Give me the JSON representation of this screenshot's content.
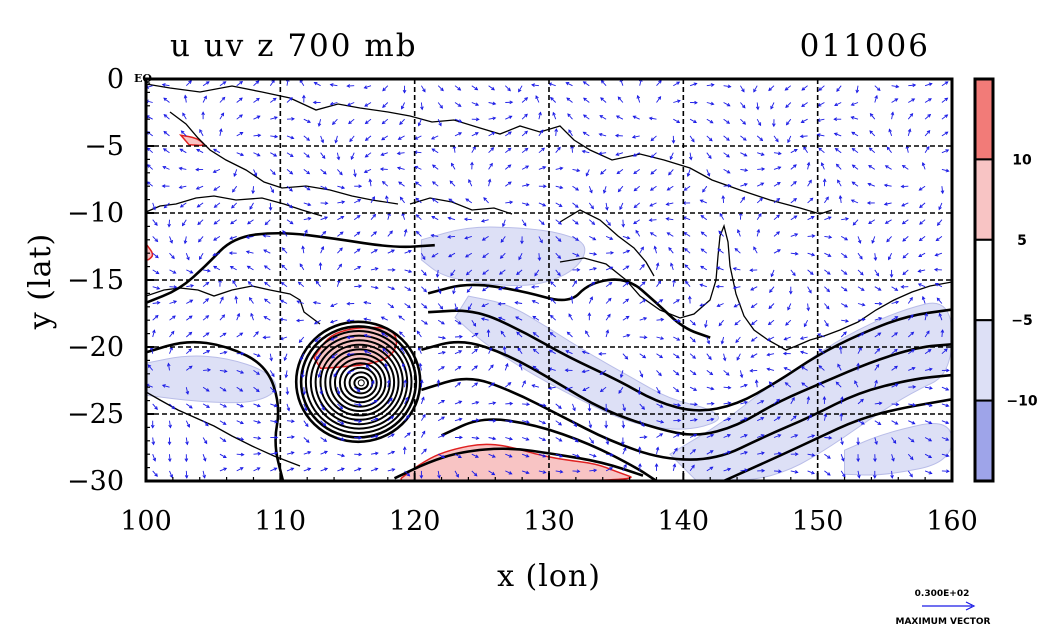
{
  "chart_data": {
    "type": "contour",
    "title_left": "u uv z 700 mb",
    "title_right": "011006",
    "xlabel": "x (lon)",
    "ylabel": "y (lat)",
    "xlim": [
      100,
      160
    ],
    "ylim": [
      -30,
      0
    ],
    "x_ticks": [
      100,
      110,
      120,
      130,
      140,
      150,
      160
    ],
    "y_ticks": [
      0,
      -5,
      -10,
      -15,
      -20,
      -25,
      -30
    ],
    "x_tick_labels": [
      "100",
      "110",
      "120",
      "130",
      "140",
      "150",
      "160"
    ],
    "y_tick_labels": [
      "0",
      "−5",
      "−10",
      "−15",
      "−20",
      "−25",
      "−30"
    ],
    "corner_label": "EQ",
    "grid": true,
    "colorbar": {
      "levels": [
        -15,
        -10,
        -5,
        5,
        10,
        15
      ],
      "labels": [
        "10",
        "5",
        "−5",
        "−10"
      ],
      "label_values": [
        10,
        5,
        -5,
        -10
      ],
      "colors": [
        "#f27b78",
        "#f8c4c4",
        "#ffffff",
        "#dde0f6",
        "#9ea4e9"
      ]
    },
    "vector_key": {
      "value": "0.300E+02",
      "label": "MAXIMUM VECTOR"
    },
    "colors": {
      "positive_strong": "#f27b78",
      "positive_weak": "#f8c4c4",
      "negative_weak": "#dde0f6",
      "negative_strong": "#9ea4e9",
      "vectors": "#1a1ae6",
      "contours": "#000000",
      "positive_outline": "#e02020"
    },
    "cyclone_center": {
      "lon": 115.8,
      "lat": -22.6
    },
    "positive_regions": [
      {
        "name": "cyclone-north",
        "points": [
          [
            112.5,
            -20.8
          ],
          [
            113.5,
            -19.3
          ],
          [
            114.8,
            -18.7
          ],
          [
            116.5,
            -18.5
          ],
          [
            118.2,
            -18.6
          ],
          [
            118.8,
            -19.6
          ],
          [
            118.2,
            -20.8
          ],
          [
            116.5,
            -21.3
          ],
          [
            114.5,
            -21.5
          ],
          [
            113,
            -21.6
          ]
        ]
      },
      {
        "name": "south-jet",
        "points": [
          [
            119,
            -29.8
          ],
          [
            120,
            -29
          ],
          [
            121.5,
            -28.1
          ],
          [
            123,
            -27.6
          ],
          [
            125,
            -27.2
          ],
          [
            127,
            -27.4
          ],
          [
            129,
            -28
          ],
          [
            131,
            -28.4
          ],
          [
            133.5,
            -28.7
          ],
          [
            135,
            -29.3
          ],
          [
            137,
            -30
          ],
          [
            119,
            -30
          ]
        ]
      },
      {
        "name": "west-edge",
        "points": [
          [
            100,
            -12.3
          ],
          [
            100.6,
            -13.1
          ],
          [
            100.2,
            -13.5
          ],
          [
            100,
            -13.5
          ]
        ]
      },
      {
        "name": "northwest-spot",
        "points": [
          [
            102.6,
            -4.2
          ],
          [
            103.8,
            -4.4
          ],
          [
            104.5,
            -5
          ],
          [
            103.2,
            -4.9
          ]
        ]
      }
    ],
    "negative_regions": [
      {
        "name": "central-band",
        "points": [
          [
            120.5,
            -12
          ],
          [
            124,
            -11
          ],
          [
            128,
            -11.1
          ],
          [
            131,
            -11.5
          ],
          [
            133,
            -12.4
          ],
          [
            132,
            -14.3
          ],
          [
            129,
            -15.5
          ],
          [
            125,
            -15.3
          ],
          [
            122,
            -14.7
          ],
          [
            120.5,
            -13.5
          ]
        ]
      },
      {
        "name": "east-band",
        "points": [
          [
            139,
            -28
          ],
          [
            143,
            -25.6
          ],
          [
            146,
            -23.2
          ],
          [
            149,
            -21.2
          ],
          [
            152,
            -19.2
          ],
          [
            156,
            -17.3
          ],
          [
            160,
            -16.3
          ],
          [
            160,
            -22
          ],
          [
            157,
            -23.4
          ],
          [
            154,
            -25.3
          ],
          [
            151,
            -27.4
          ],
          [
            148,
            -29.2
          ],
          [
            145,
            -30
          ],
          [
            141,
            -30
          ]
        ]
      },
      {
        "name": "diagonal-band",
        "points": [
          [
            124,
            -16.2
          ],
          [
            127,
            -16.8
          ],
          [
            130,
            -18.6
          ],
          [
            133,
            -20.5
          ],
          [
            136,
            -22.2
          ],
          [
            139,
            -23.9
          ],
          [
            142,
            -24.6
          ],
          [
            143,
            -25.5
          ],
          [
            140,
            -26.3
          ],
          [
            136,
            -25.7
          ],
          [
            132,
            -23.8
          ],
          [
            128,
            -21.6
          ],
          [
            125,
            -19.6
          ],
          [
            123,
            -17.8
          ]
        ]
      },
      {
        "name": "west-band",
        "points": [
          [
            100,
            -21.2
          ],
          [
            103,
            -20.6
          ],
          [
            106,
            -20.8
          ],
          [
            109,
            -21.8
          ],
          [
            110,
            -23.2
          ],
          [
            108,
            -24.2
          ],
          [
            104,
            -24.1
          ],
          [
            100,
            -23.6
          ]
        ]
      },
      {
        "name": "far-east-spot",
        "points": [
          [
            152,
            -27.7
          ],
          [
            155,
            -26.4
          ],
          [
            160,
            -25.3
          ],
          [
            160,
            -28.6
          ],
          [
            155,
            -29.6
          ],
          [
            152,
            -29.5
          ]
        ]
      }
    ],
    "contour_lines": [
      {
        "name": "west-contour-1",
        "points": [
          [
            100,
            -20.4
          ],
          [
            103,
            -19.5
          ],
          [
            106,
            -19.9
          ],
          [
            109,
            -21.4
          ],
          [
            110,
            -24.4
          ],
          [
            109.5,
            -27.2
          ],
          [
            110.2,
            -30
          ]
        ]
      },
      {
        "name": "north-west-contour",
        "points": [
          [
            100,
            -16.7
          ],
          [
            102.5,
            -15.7
          ],
          [
            104.5,
            -13.9
          ],
          [
            106.5,
            -11.8
          ],
          [
            110,
            -11.4
          ],
          [
            114,
            -11.9
          ],
          [
            118.5,
            -12.6
          ],
          [
            121.5,
            -12.4
          ]
        ]
      },
      {
        "name": "loop-contour",
        "points": [
          [
            121,
            -16
          ],
          [
            124,
            -15.2
          ],
          [
            128,
            -15.8
          ],
          [
            131.5,
            -16.8
          ],
          [
            133,
            -15.2
          ],
          [
            135.8,
            -14.8
          ],
          [
            138,
            -16.7
          ],
          [
            140,
            -18.6
          ],
          [
            142,
            -19.3
          ]
        ]
      },
      {
        "name": "diagonal-contour-1",
        "points": [
          [
            121,
            -17.4
          ],
          [
            124.5,
            -17.2
          ],
          [
            128,
            -18.8
          ],
          [
            131.5,
            -20.8
          ],
          [
            135,
            -22.4
          ],
          [
            138,
            -24.1
          ],
          [
            141,
            -24.9
          ],
          [
            144,
            -24.3
          ],
          [
            147,
            -22.6
          ],
          [
            150,
            -20.6
          ],
          [
            153,
            -19.1
          ],
          [
            156.5,
            -17.7
          ],
          [
            160,
            -17.2
          ]
        ]
      },
      {
        "name": "diagonal-contour-2",
        "points": [
          [
            120.5,
            -20.2
          ],
          [
            123.5,
            -19.4
          ],
          [
            127,
            -20.6
          ],
          [
            130.5,
            -22.6
          ],
          [
            134,
            -24.7
          ],
          [
            138,
            -26.1
          ],
          [
            141,
            -26.7
          ],
          [
            144,
            -25.9
          ],
          [
            147,
            -24.1
          ],
          [
            150.5,
            -22.6
          ],
          [
            154,
            -21.1
          ],
          [
            157.5,
            -20
          ],
          [
            160,
            -19.8
          ]
        ]
      },
      {
        "name": "diagonal-contour-3",
        "points": [
          [
            120.5,
            -23.2
          ],
          [
            124,
            -22.1
          ],
          [
            127.5,
            -23.4
          ],
          [
            131,
            -25.2
          ],
          [
            134.5,
            -27
          ],
          [
            138.5,
            -28.4
          ],
          [
            142.5,
            -28.4
          ],
          [
            146,
            -26.7
          ],
          [
            149.5,
            -25.2
          ],
          [
            153,
            -23.4
          ],
          [
            157,
            -22.4
          ],
          [
            160,
            -22.1
          ]
        ]
      },
      {
        "name": "diagonal-contour-4",
        "points": [
          [
            122,
            -26.6
          ],
          [
            125,
            -25.2
          ],
          [
            129,
            -25.8
          ],
          [
            133,
            -27.2
          ],
          [
            136.5,
            -29
          ],
          [
            138,
            -30
          ]
        ]
      },
      {
        "name": "east-contour",
        "points": [
          [
            143,
            -30
          ],
          [
            147,
            -28.2
          ],
          [
            150,
            -26.8
          ],
          [
            153,
            -25.4
          ],
          [
            156,
            -24.6
          ],
          [
            160,
            -23.9
          ]
        ]
      },
      {
        "name": "south-contour",
        "points": [
          [
            118.5,
            -29.8
          ],
          [
            121,
            -28.6
          ],
          [
            123.5,
            -27.8
          ],
          [
            127,
            -27.5
          ],
          [
            130.5,
            -28
          ],
          [
            134,
            -28.6
          ],
          [
            137,
            -29.6
          ]
        ]
      }
    ]
  }
}
